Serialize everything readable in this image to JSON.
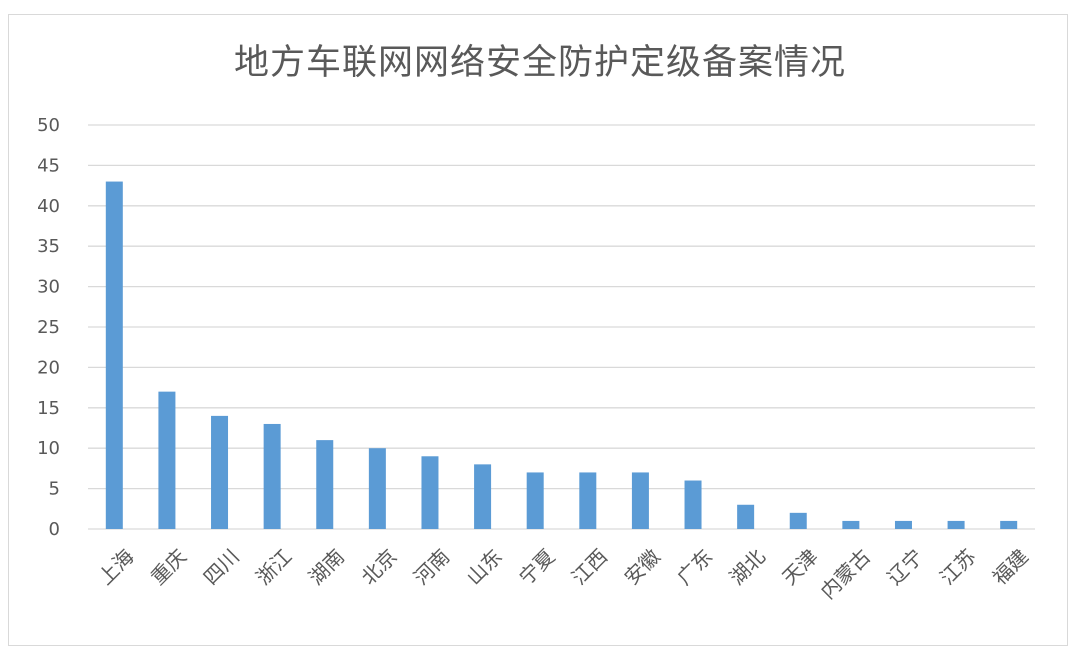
{
  "chart_data": {
    "type": "bar",
    "title": "地方车联网网络安全防护定级备案情况",
    "xlabel": "",
    "ylabel": "",
    "ylim": [
      0,
      50
    ],
    "yticks": [
      0,
      5,
      10,
      15,
      20,
      25,
      30,
      35,
      40,
      45,
      50
    ],
    "grid": true,
    "legend": "none",
    "bar_color": "#5b9bd5",
    "categories": [
      "上海",
      "重庆",
      "四川",
      "浙江",
      "湖南",
      "北京",
      "河南",
      "山东",
      "宁夏",
      "江西",
      "安徽",
      "广东",
      "湖北",
      "天津",
      "内蒙古",
      "辽宁",
      "江苏",
      "福建"
    ],
    "values": [
      43,
      17,
      14,
      13,
      11,
      10,
      9,
      8,
      7,
      7,
      7,
      6,
      3,
      2,
      1,
      1,
      1,
      1
    ]
  }
}
